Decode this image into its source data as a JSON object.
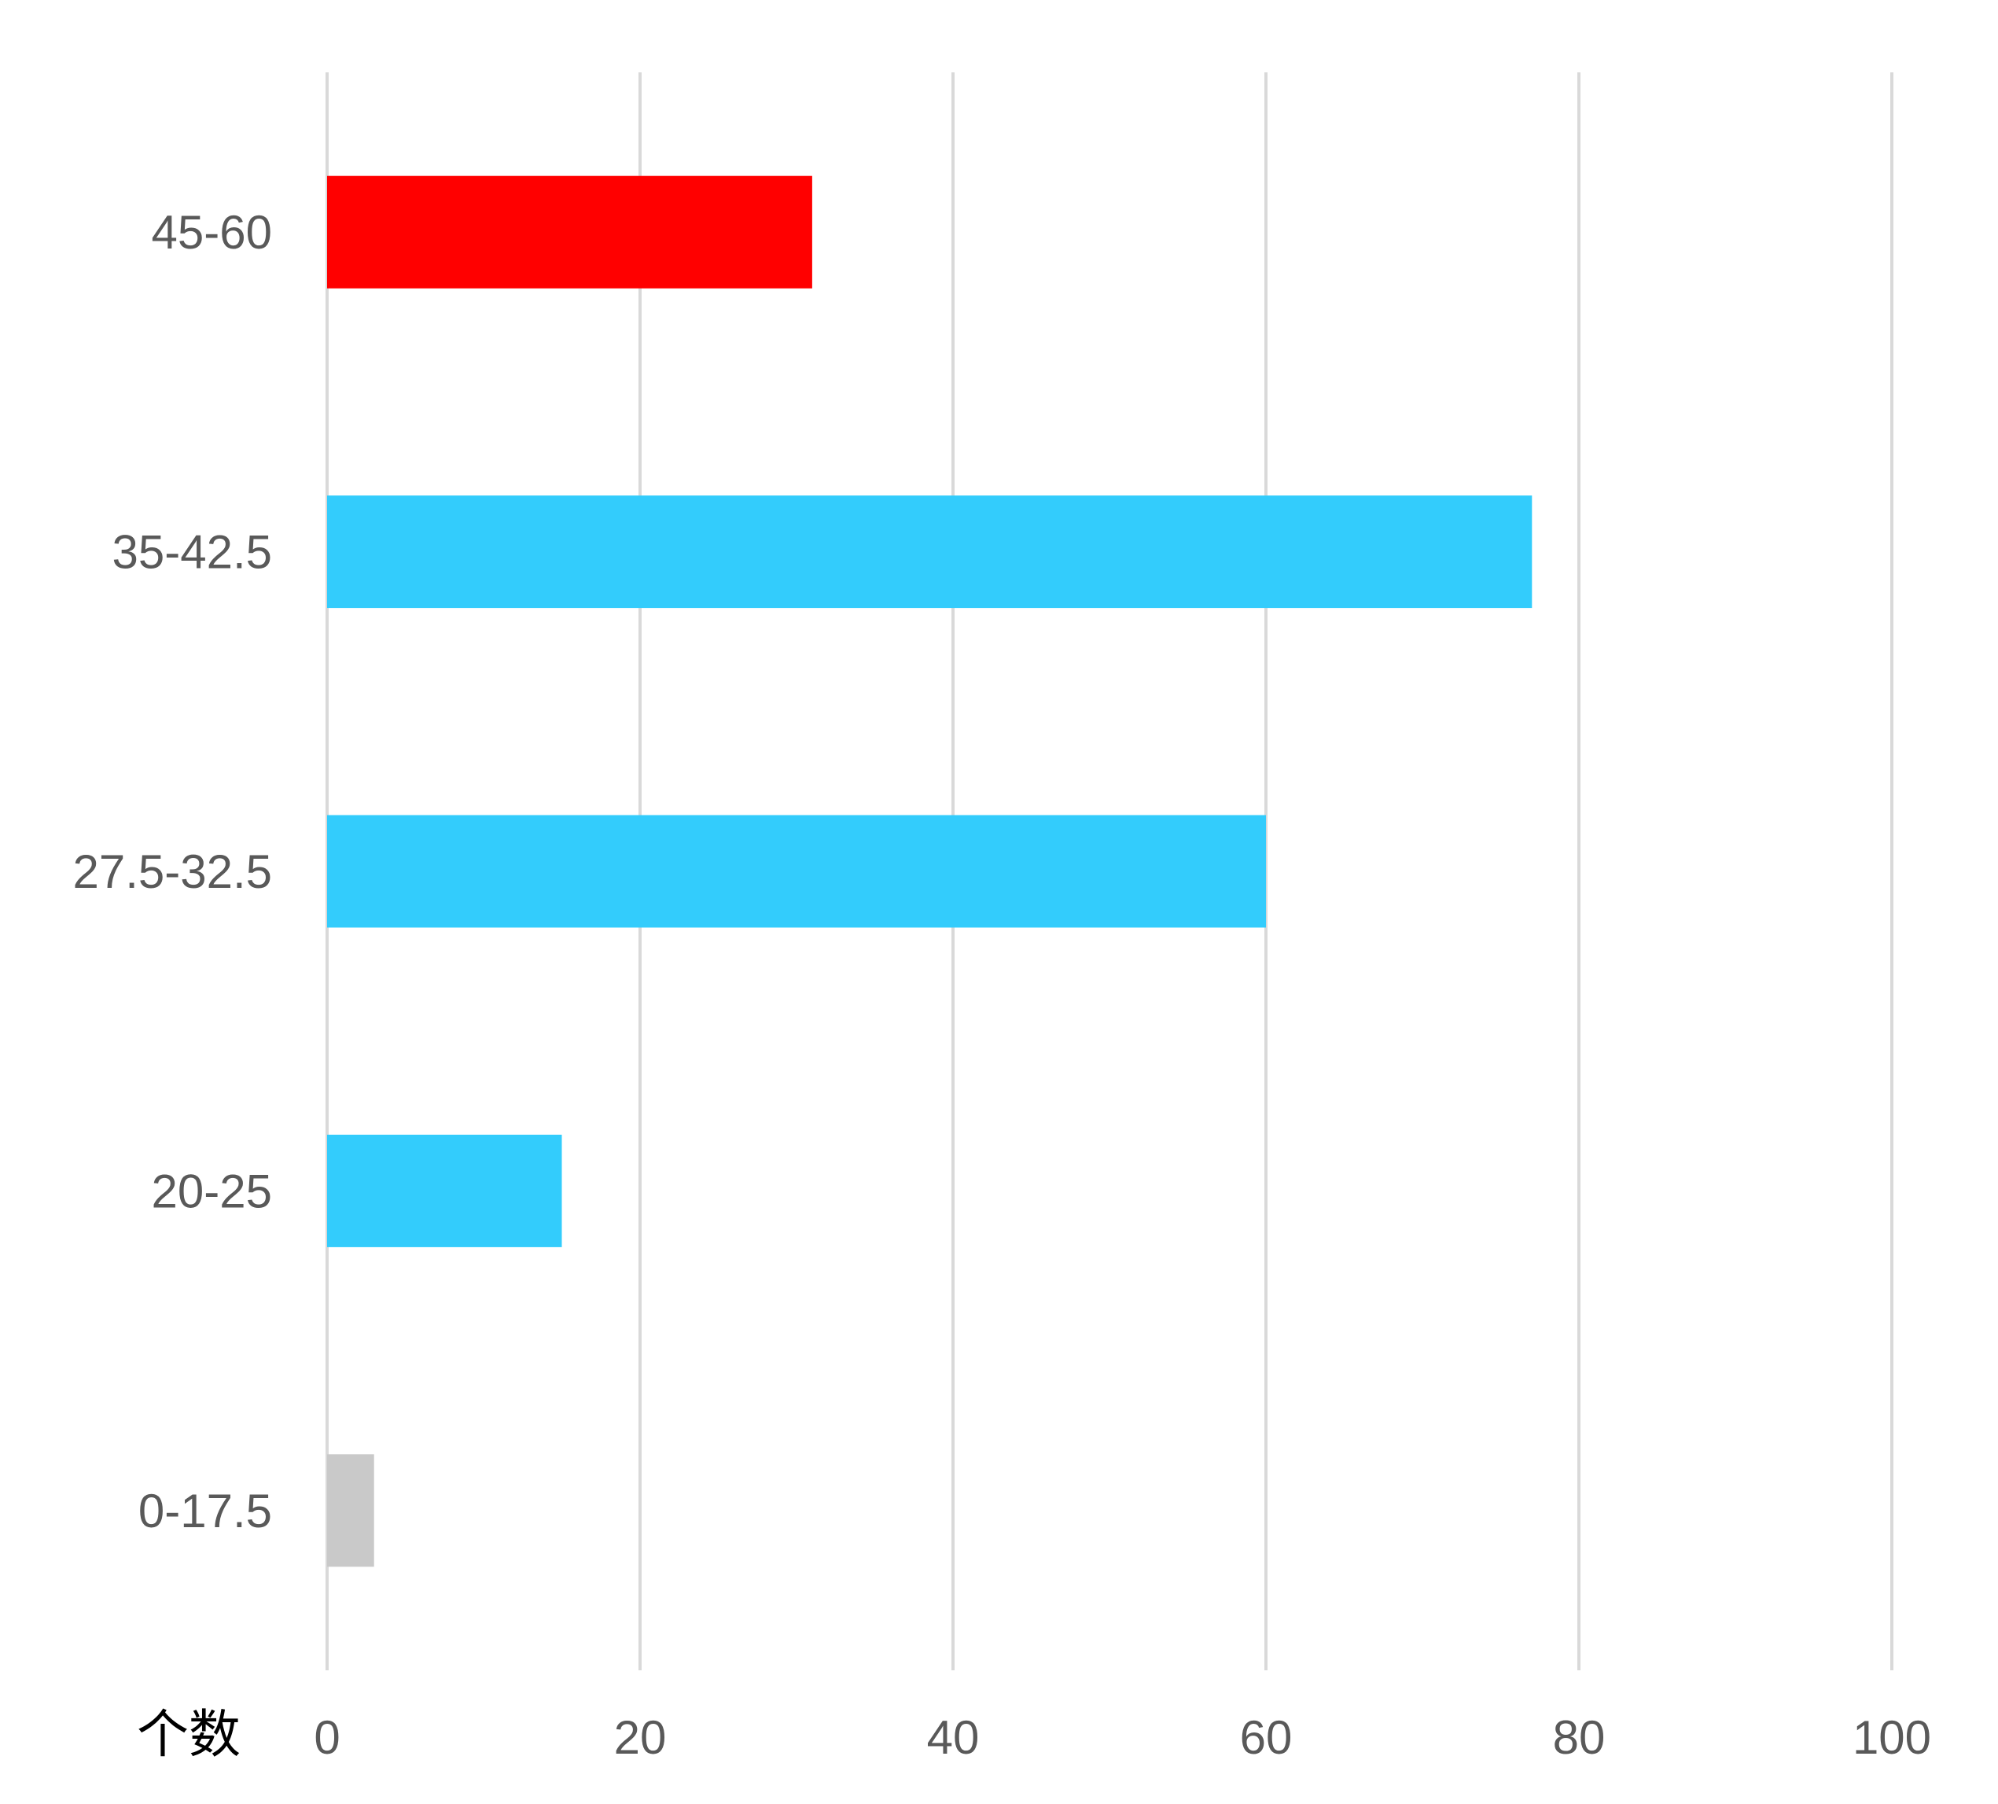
{
  "chart_data": {
    "type": "bar",
    "orientation": "horizontal",
    "categories": [
      "0-17.5",
      "20-25",
      "27.5-32.5",
      "35-42.5",
      "45-60"
    ],
    "values": [
      3,
      15,
      60,
      77,
      31
    ],
    "colors": [
      "#c9c9c9",
      "#33ccfc",
      "#33ccfc",
      "#33ccfc",
      "#ff0000"
    ],
    "xlim": [
      0,
      100
    ],
    "xticks": [
      "0",
      "20",
      "40",
      "60",
      "80",
      "100"
    ],
    "xlabel": "个数",
    "title": "",
    "ylabel": "",
    "grid": "vertical",
    "legend": "none"
  }
}
